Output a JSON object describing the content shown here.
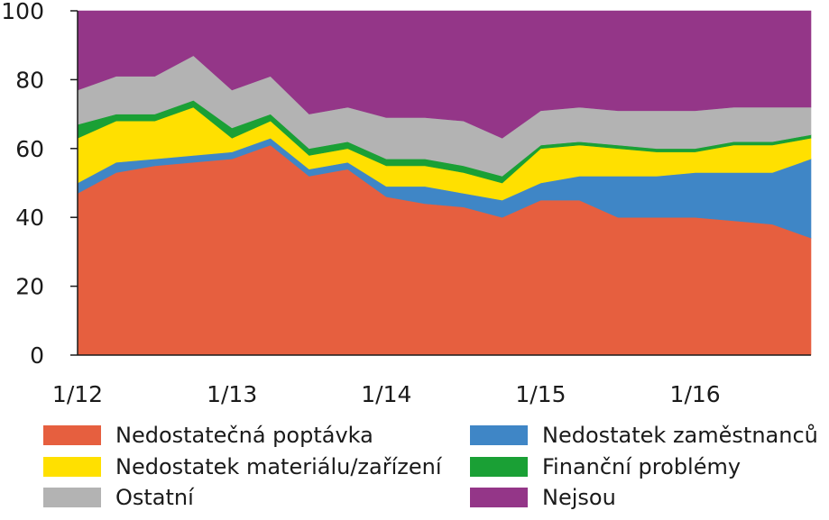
{
  "chart_data": {
    "type": "area",
    "stacked": true,
    "x": [
      "1/12",
      "4/12",
      "7/12",
      "10/12",
      "1/13",
      "4/13",
      "7/13",
      "10/13",
      "1/14",
      "4/14",
      "7/14",
      "10/14",
      "1/15",
      "4/15",
      "7/15",
      "10/15",
      "1/16",
      "4/16",
      "7/16",
      "10/16"
    ],
    "x_tick_labels": [
      "1/12",
      "1/13",
      "1/14",
      "1/15",
      "1/16"
    ],
    "ylim": [
      0,
      100
    ],
    "y_ticks": [
      "0",
      "20",
      "40",
      "60",
      "80",
      "100"
    ],
    "grid": false,
    "legend_position": "bottom",
    "series": [
      {
        "name": "Nedostatečná poptávka",
        "color": "#e65f3f",
        "values": [
          47,
          53,
          55,
          56,
          57,
          61,
          52,
          54,
          46,
          44,
          43,
          40,
          45,
          45,
          40,
          40,
          40,
          39,
          38,
          34
        ]
      },
      {
        "name": "Nedostatek zaměstnanců",
        "color": "#3f86c6",
        "values": [
          3,
          3,
          2,
          2,
          2,
          2,
          2,
          2,
          3,
          5,
          4,
          5,
          5,
          7,
          12,
          12,
          13,
          14,
          15,
          23
        ]
      },
      {
        "name": "Nedostatek materiálu/zařízení",
        "color": "#ffe000",
        "values": [
          13,
          12,
          11,
          14,
          4,
          5,
          4,
          4,
          6,
          6,
          6,
          5,
          10,
          9,
          8,
          7,
          6,
          8,
          8,
          6
        ]
      },
      {
        "name": "Finanční problémy",
        "color": "#1aa035",
        "values": [
          4,
          2,
          2,
          2,
          3,
          2,
          2,
          2,
          2,
          2,
          2,
          2,
          1,
          1,
          1,
          1,
          1,
          1,
          1,
          1
        ]
      },
      {
        "name": "Ostatní",
        "color": "#b3b3b3",
        "values": [
          10,
          11,
          11,
          13,
          11,
          11,
          10,
          10,
          12,
          12,
          13,
          11,
          10,
          10,
          10,
          11,
          11,
          10,
          10,
          8
        ]
      },
      {
        "name": "Nejsou",
        "color": "#943688",
        "values": [
          23,
          19,
          19,
          13,
          23,
          19,
          30,
          28,
          31,
          31,
          32,
          37,
          29,
          28,
          29,
          29,
          29,
          28,
          28,
          28
        ]
      }
    ]
  },
  "legend": {
    "items": [
      {
        "label": "Nedostatečná poptávka",
        "color": "#e65f3f"
      },
      {
        "label": "Nedostatek materiálu/zařízení",
        "color": "#ffe000"
      },
      {
        "label": "Ostatní",
        "color": "#b3b3b3"
      },
      {
        "label": "Nedostatek zaměstnanců",
        "color": "#3f86c6"
      },
      {
        "label": "Finanční problémy",
        "color": "#1aa035"
      },
      {
        "label": "Nejsou",
        "color": "#943688"
      }
    ]
  }
}
